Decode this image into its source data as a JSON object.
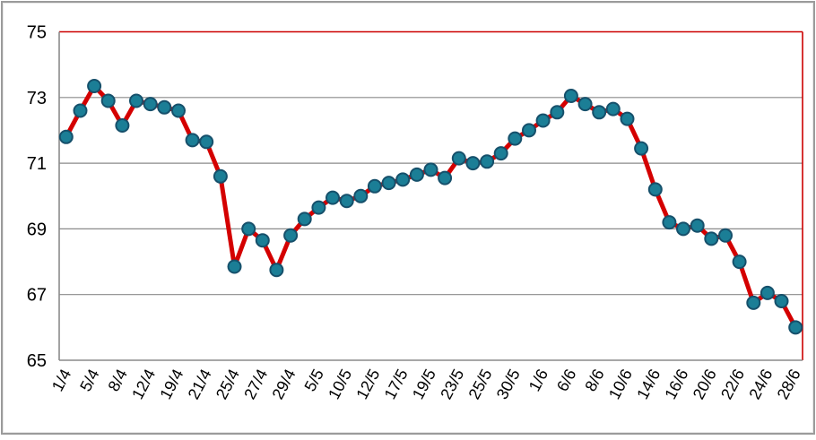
{
  "window": {
    "background_color": "#ffffff",
    "frame_border_color": "#9b9b9b"
  },
  "chart_data": {
    "type": "line",
    "title": "",
    "xlabel": "",
    "ylabel": "",
    "legend": "none",
    "grid": "horizontal",
    "ylim": [
      65,
      75
    ],
    "y_ticks": [
      75,
      73,
      71,
      69,
      67,
      65
    ],
    "x_tick_labels": [
      "1/4",
      "5/4",
      "8/4",
      "12/4",
      "19/4",
      "21/4",
      "25/4",
      "27/4",
      "29/4",
      "5/5",
      "10/5",
      "12/5",
      "17/5",
      "19/5",
      "23/5",
      "25/5",
      "30/5",
      "1/6",
      "6/6",
      "8/6",
      "10/6",
      "14/6",
      "16/6",
      "20/6",
      "22/6",
      "24/6",
      "28/6"
    ],
    "x_label_every_nth_point": 2,
    "num_points": 53,
    "values": [
      71.8,
      72.6,
      73.35,
      72.9,
      72.15,
      72.9,
      72.8,
      72.7,
      72.6,
      71.7,
      71.65,
      70.6,
      67.85,
      69.0,
      68.65,
      67.75,
      68.8,
      69.3,
      69.65,
      69.95,
      69.85,
      70.0,
      70.3,
      70.4,
      70.5,
      70.65,
      70.8,
      70.55,
      71.15,
      71.0,
      71.05,
      71.3,
      71.75,
      72.0,
      72.3,
      72.55,
      73.05,
      72.8,
      72.55,
      72.65,
      72.35,
      71.45,
      70.2,
      69.2,
      69.0,
      69.1,
      68.7,
      68.8,
      68.0,
      66.75,
      67.05,
      66.8,
      66.0
    ],
    "colors": {
      "line": "#d40000",
      "marker_fill": "#1b7e96",
      "marker_stroke": "#16506b",
      "gridline": "#8a8a8a",
      "axis": "#8a8a8a",
      "plot_border_top": "#cc0000",
      "plot_border_right": "#cc0000",
      "tick_text": "#000000"
    }
  }
}
